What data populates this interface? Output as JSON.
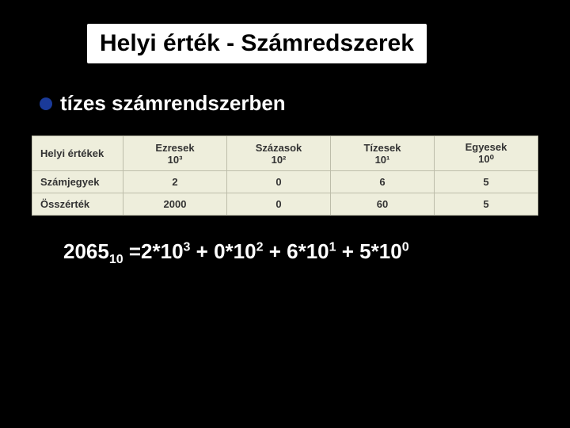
{
  "title": "Helyi érték - Számredszerek",
  "subtitle": "tízes számrendszerben",
  "table": {
    "row0": {
      "label": "Helyi értékek",
      "c0a": "Ezresek",
      "c0b": "10³",
      "c1a": "Százasok",
      "c1b": "10²",
      "c2a": "Tízesek",
      "c2b": "10¹",
      "c3a": "Egyesek",
      "c3b": "10⁰"
    },
    "row1": {
      "label": "Számjegyek",
      "c0": "2",
      "c1": "0",
      "c2": "6",
      "c3": "5"
    },
    "row2": {
      "label": "Összérték",
      "c0": "2000",
      "c1": "0",
      "c2": "60",
      "c3": "5"
    },
    "colWidths": [
      "18%",
      "20.5%",
      "20.5%",
      "20.5%",
      "20.5%"
    ]
  },
  "formula": {
    "base": "2065",
    "subscript": "10",
    "eq": " =2*10",
    "e3": "3",
    "p1": " + 0*10",
    "e2": "2",
    "p2": " + 6*10",
    "e1": "1",
    "p3": " + 5*10",
    "e0": "0"
  },
  "colors": {
    "background": "#000000",
    "titleBg": "#ffffff",
    "titleText": "#000000",
    "bullet": "#1a3a99",
    "text": "#ffffff",
    "tableBg": "#eeeedc",
    "tableBorder": "#bdbdaa",
    "tableText": "#333333"
  }
}
